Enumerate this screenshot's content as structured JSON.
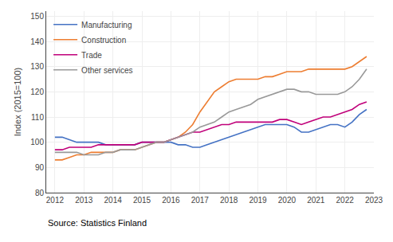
{
  "chart_data": {
    "type": "line",
    "ylabel": "Index (2015=100)",
    "annotations": [
      {
        "text": "Source: Statistics Finland"
      }
    ],
    "x": [
      2012,
      2012.25,
      2012.5,
      2012.75,
      2013,
      2013.25,
      2013.5,
      2013.75,
      2014,
      2014.25,
      2014.5,
      2014.75,
      2015,
      2015.25,
      2015.5,
      2015.75,
      2016,
      2016.25,
      2016.5,
      2016.75,
      2017,
      2017.25,
      2017.5,
      2017.75,
      2018,
      2018.25,
      2018.5,
      2018.75,
      2019,
      2019.25,
      2019.5,
      2019.75,
      2020,
      2020.25,
      2020.5,
      2020.75,
      2021,
      2021.25,
      2021.5,
      2021.75,
      2022,
      2022.25,
      2022.5,
      2022.75
    ],
    "series": [
      {
        "name": "Manufacturing",
        "color": "#4472c4",
        "values": [
          102,
          102,
          101,
          100,
          100,
          100,
          100,
          99,
          99,
          99,
          99,
          99,
          100,
          100,
          100,
          100,
          100,
          99,
          99,
          98,
          98,
          99,
          100,
          101,
          102,
          103,
          104,
          105,
          106,
          107,
          107,
          107,
          107,
          106,
          104,
          104,
          105,
          106,
          107,
          107,
          106,
          108,
          111,
          113
        ]
      },
      {
        "name": "Construction",
        "color": "#ed7d31",
        "values": [
          93,
          93,
          94,
          95,
          95,
          96,
          96,
          96,
          96,
          97,
          97,
          97,
          98,
          99,
          100,
          100,
          101,
          102,
          104,
          107,
          112,
          116,
          120,
          122,
          124,
          125,
          125,
          125,
          125,
          126,
          126,
          127,
          128,
          128,
          128,
          129,
          129,
          129,
          129,
          129,
          129,
          130,
          132,
          134
        ]
      },
      {
        "name": "Trade",
        "color": "#c0007a",
        "values": [
          97,
          97,
          98,
          98,
          98,
          98,
          99,
          99,
          99,
          99,
          99,
          99,
          100,
          100,
          100,
          100,
          101,
          102,
          103,
          104,
          104,
          105,
          106,
          107,
          107,
          108,
          108,
          108,
          108,
          108,
          108,
          109,
          109,
          108,
          107,
          108,
          109,
          110,
          110,
          111,
          112,
          113,
          115,
          116
        ]
      },
      {
        "name": "Other services",
        "color": "#999999",
        "values": [
          96,
          96,
          96,
          96,
          95,
          95,
          95,
          96,
          96,
          97,
          97,
          97,
          98,
          99,
          100,
          100,
          101,
          102,
          103,
          104,
          106,
          107,
          108,
          110,
          112,
          113,
          114,
          115,
          117,
          118,
          119,
          120,
          121,
          121,
          120,
          120,
          119,
          119,
          119,
          119,
          120,
          122,
          125,
          129
        ]
      }
    ],
    "xlim": [
      2011.7,
      2023.0
    ],
    "xticks": [
      2012,
      2013,
      2014,
      2015,
      2016,
      2017,
      2018,
      2019,
      2020,
      2021,
      2022,
      2023
    ],
    "ylim": [
      80,
      152
    ],
    "yticks": [
      80,
      90,
      100,
      110,
      120,
      130,
      140,
      150
    ],
    "grid": true,
    "legend": "upper left"
  }
}
